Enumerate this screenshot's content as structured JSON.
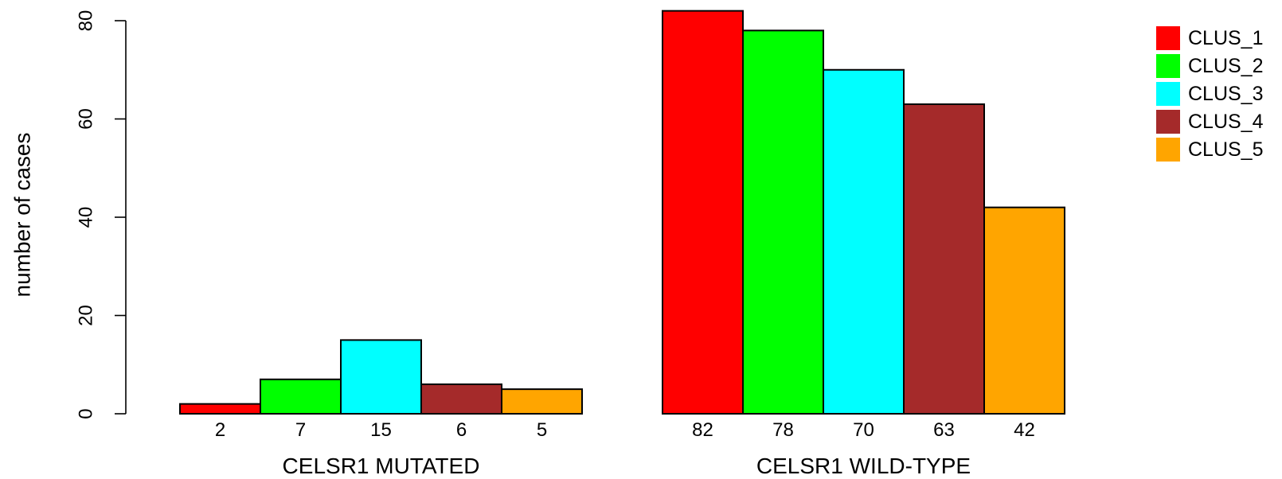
{
  "chart_data": {
    "type": "bar",
    "layout": "grouped",
    "title": "",
    "xlabel": "",
    "ylabel": "number of cases",
    "ylim": [
      0,
      80
    ],
    "yticks": [
      0,
      20,
      40,
      60,
      80
    ],
    "groups": [
      "CELSR1 MUTATED",
      "CELSR1 WILD-TYPE"
    ],
    "series": [
      {
        "name": "CLUS_1",
        "color": "#ff0000",
        "values": [
          2,
          82
        ]
      },
      {
        "name": "CLUS_2",
        "color": "#00ff00",
        "values": [
          7,
          78
        ]
      },
      {
        "name": "CLUS_3",
        "color": "#00ffff",
        "values": [
          15,
          70
        ]
      },
      {
        "name": "CLUS_4",
        "color": "#a52a2a",
        "values": [
          6,
          63
        ]
      },
      {
        "name": "CLUS_5",
        "color": "#ffa500",
        "values": [
          5,
          42
        ]
      }
    ],
    "bar_value_labels": true,
    "grid": false,
    "legend_position": "top-right"
  }
}
